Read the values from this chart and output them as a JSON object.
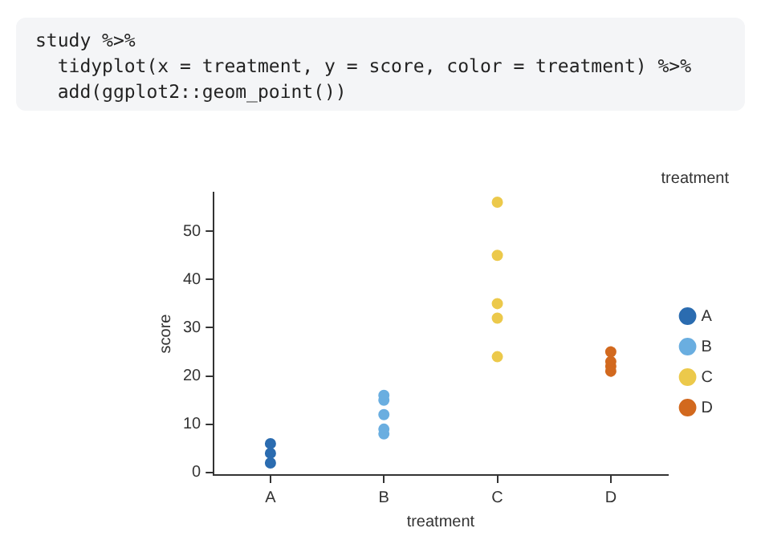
{
  "chart_data": {
    "type": "scatter",
    "xlabel": "treatment",
    "ylabel": "score",
    "legend_title": "treatment",
    "legend": "right",
    "grid": false,
    "marker": "circle",
    "categories": [
      "A",
      "B",
      "C",
      "D"
    ],
    "ylim": [
      -0.5,
      58
    ],
    "yticks": [
      0,
      10,
      20,
      30,
      40,
      50
    ],
    "annotations": [
      "study %>%",
      "  tidyplot(x = treatment, y = score, color = treatment) %>%",
      "  add(ggplot2::geom_point())"
    ],
    "series": [
      {
        "name": "A",
        "color": "#2b6cb0",
        "x": [
          "A",
          "A",
          "A"
        ],
        "values": [
          2,
          4,
          6
        ]
      },
      {
        "name": "B",
        "color": "#6aaee0",
        "x": [
          "B",
          "B",
          "B",
          "B",
          "B"
        ],
        "values": [
          8,
          9,
          12,
          15,
          16
        ]
      },
      {
        "name": "C",
        "color": "#ecc94b",
        "x": [
          "C",
          "C",
          "C",
          "C",
          "C"
        ],
        "values": [
          24,
          32,
          35,
          45,
          56
        ]
      },
      {
        "name": "D",
        "color": "#d2691e",
        "x": [
          "D",
          "D",
          "D",
          "D"
        ],
        "values": [
          21,
          22,
          23,
          25
        ]
      }
    ]
  }
}
